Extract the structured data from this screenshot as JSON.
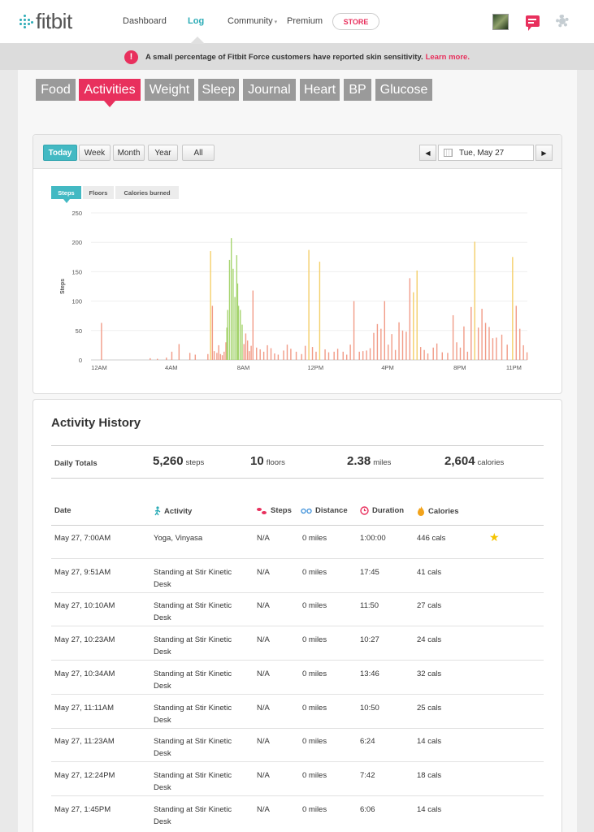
{
  "nav": {
    "logo": "fitbit",
    "links": [
      "Dashboard",
      "Log",
      "Community",
      "Premium"
    ],
    "store": "STORE"
  },
  "alert": {
    "icon": "!",
    "text": "A small percentage of Fitbit Force customers have reported skin sensitivity.",
    "link": "Learn more."
  },
  "tabs": [
    "Food",
    "Activities",
    "Weight",
    "Sleep",
    "Journal",
    "Heart",
    "BP",
    "Glucose"
  ],
  "range_buttons": [
    "Today",
    "Week",
    "Month",
    "Year",
    "All"
  ],
  "date": {
    "prev": "◀",
    "value": "Tue, May 27",
    "next": "▶"
  },
  "chart_tabs": [
    "Steps",
    "Floors",
    "Calories burned"
  ],
  "colors": {
    "accent_pink": "#e8305d",
    "accent_teal": "#43b9c3",
    "bar_low": "#f19b87",
    "bar_mid": "#f4cf6a",
    "bar_green": "#a7d571"
  },
  "chart_data": {
    "type": "bar",
    "ylabel": "Steps",
    "ylim": [
      0,
      250
    ],
    "yticks": [
      250,
      200,
      150,
      100,
      50,
      0
    ],
    "xticks": [
      "12AM",
      "4AM",
      "8AM",
      "12PM",
      "4PM",
      "8PM",
      "11PM"
    ],
    "xtick_hours": [
      0,
      4,
      8,
      12,
      16,
      20,
      23
    ],
    "x_hours": [
      0.1,
      2.8,
      3.2,
      3.7,
      4.0,
      4.4,
      5.0,
      5.3,
      6.0,
      6.15,
      6.25,
      6.35,
      6.5,
      6.6,
      6.7,
      6.8,
      6.9,
      7.0,
      7.05,
      7.1,
      7.2,
      7.3,
      7.4,
      7.5,
      7.6,
      7.65,
      7.7,
      7.8,
      7.9,
      8.0,
      8.1,
      8.2,
      8.3,
      8.4,
      8.5,
      8.7,
      8.9,
      9.1,
      9.3,
      9.5,
      9.7,
      9.9,
      10.2,
      10.4,
      10.6,
      10.9,
      11.2,
      11.4,
      11.6,
      11.8,
      12.0,
      12.2,
      12.5,
      12.7,
      13.0,
      13.2,
      13.5,
      13.7,
      13.9,
      14.1,
      14.4,
      14.6,
      14.8,
      15.0,
      15.2,
      15.4,
      15.6,
      15.8,
      16.0,
      16.2,
      16.4,
      16.6,
      16.8,
      17.0,
      17.2,
      17.4,
      17.6,
      17.8,
      18.0,
      18.2,
      18.5,
      18.7,
      19.0,
      19.3,
      19.6,
      19.8,
      20.0,
      20.2,
      20.4,
      20.6,
      20.8,
      21.0,
      21.2,
      21.4,
      21.6,
      21.8,
      22.0,
      22.3,
      22.6,
      22.9,
      23.1,
      23.3,
      23.5,
      23.7
    ],
    "values": [
      63,
      3,
      2,
      4,
      14,
      27,
      12,
      9,
      10,
      185,
      92,
      15,
      12,
      25,
      10,
      8,
      14,
      30,
      55,
      85,
      170,
      207,
      155,
      107,
      178,
      130,
      92,
      85,
      60,
      27,
      45,
      33,
      15,
      24,
      118,
      21,
      18,
      14,
      25,
      20,
      11,
      9,
      16,
      26,
      19,
      14,
      10,
      24,
      187,
      22,
      14,
      167,
      18,
      13,
      14,
      19,
      14,
      9,
      26,
      100,
      14,
      15,
      16,
      20,
      46,
      61,
      53,
      100,
      26,
      44,
      17,
      64,
      50,
      48,
      139,
      115,
      152,
      22,
      17,
      11,
      21,
      28,
      13,
      12,
      76,
      30,
      21,
      57,
      14,
      90,
      201,
      55,
      87,
      63,
      56,
      37,
      38,
      43,
      26,
      175,
      92,
      53,
      25,
      13
    ],
    "series_colors": "mixed by intensity"
  },
  "history": {
    "title": "Activity History",
    "totals_label": "Daily Totals",
    "totals": [
      {
        "value": "5,260",
        "unit": "steps"
      },
      {
        "value": "10",
        "unit": "floors"
      },
      {
        "value": "2.38",
        "unit": "miles"
      },
      {
        "value": "2,604",
        "unit": "calories"
      }
    ],
    "columns": [
      "Date",
      "Activity",
      "Steps",
      "Distance",
      "Duration",
      "Calories"
    ],
    "rows": [
      {
        "date": "May 27, 7:00AM",
        "activity": "Yoga, Vinyasa",
        "steps": "N/A",
        "distance": "0 miles",
        "duration": "1:00:00",
        "calories": "446 cals",
        "starred": true
      },
      {
        "date": "May 27, 9:51AM",
        "activity": "Standing at Stir Kinetic Desk",
        "steps": "N/A",
        "distance": "0 miles",
        "duration": "17:45",
        "calories": "41 cals"
      },
      {
        "date": "May 27, 10:10AM",
        "activity": "Standing at Stir Kinetic Desk",
        "steps": "N/A",
        "distance": "0 miles",
        "duration": "11:50",
        "calories": "27 cals"
      },
      {
        "date": "May 27, 10:23AM",
        "activity": "Standing at Stir Kinetic Desk",
        "steps": "N/A",
        "distance": "0 miles",
        "duration": "10:27",
        "calories": "24 cals"
      },
      {
        "date": "May 27, 10:34AM",
        "activity": "Standing at Stir Kinetic Desk",
        "steps": "N/A",
        "distance": "0 miles",
        "duration": "13:46",
        "calories": "32 cals"
      },
      {
        "date": "May 27, 11:11AM",
        "activity": "Standing at Stir Kinetic Desk",
        "steps": "N/A",
        "distance": "0 miles",
        "duration": "10:50",
        "calories": "25 cals"
      },
      {
        "date": "May 27, 11:23AM",
        "activity": "Standing at Stir Kinetic Desk",
        "steps": "N/A",
        "distance": "0 miles",
        "duration": "6:24",
        "calories": "14 cals"
      },
      {
        "date": "May 27, 12:24PM",
        "activity": "Standing at Stir Kinetic Desk",
        "steps": "N/A",
        "distance": "0 miles",
        "duration": "7:42",
        "calories": "18 cals"
      },
      {
        "date": "May 27, 1:45PM",
        "activity": "Standing at Stir Kinetic Desk",
        "steps": "N/A",
        "distance": "0 miles",
        "duration": "6:06",
        "calories": "14 cals"
      }
    ]
  }
}
